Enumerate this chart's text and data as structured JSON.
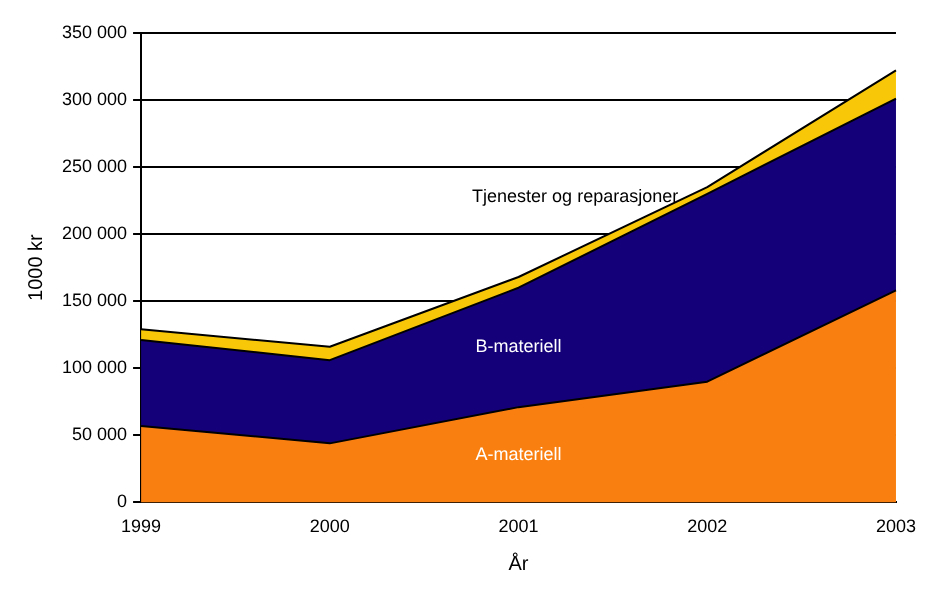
{
  "chart_data": {
    "type": "area",
    "stacked": true,
    "xlabel": "År",
    "ylabel": "1000 kr",
    "categories": [
      "1999",
      "2000",
      "2001",
      "2002",
      "2003"
    ],
    "series": [
      {
        "name": "A-materiell",
        "color": "#f98010",
        "values": [
          57000,
          44000,
          71000,
          90000,
          158000
        ]
      },
      {
        "name": "B-materiell",
        "color": "#140078",
        "values": [
          64000,
          62000,
          89000,
          140000,
          143000
        ]
      },
      {
        "name": "Tjenester og reparasjoner",
        "color": "#f8c808",
        "values": [
          8000,
          10000,
          8000,
          5000,
          21000
        ]
      }
    ],
    "ylim": [
      0,
      350000
    ],
    "yticks": [
      {
        "value": 0,
        "label": "0"
      },
      {
        "value": 50000,
        "label": "50 000"
      },
      {
        "value": 100000,
        "label": "100 000"
      },
      {
        "value": 150000,
        "label": "150 000"
      },
      {
        "value": 200000,
        "label": "200 000"
      },
      {
        "value": 250000,
        "label": "250 000"
      },
      {
        "value": 300000,
        "label": "300 000"
      },
      {
        "value": 350000,
        "label": "350 000"
      }
    ],
    "grid": "y",
    "legend": false
  }
}
